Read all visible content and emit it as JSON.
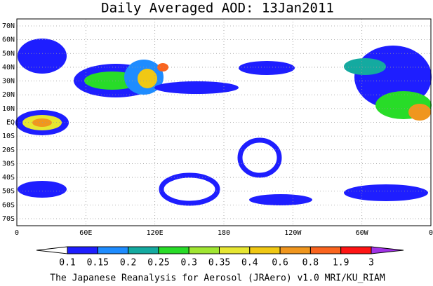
{
  "title": "Daily Averaged AOD: 13Jan2011",
  "lat_labels": [
    "70N",
    "60N",
    "50N",
    "40N",
    "30N",
    "20N",
    "10N",
    "EQ",
    "10S",
    "20S",
    "30S",
    "40S",
    "50S",
    "60S",
    "70S"
  ],
  "lon_labels": [
    "0",
    "60E",
    "120E",
    "180",
    "120W",
    "60W",
    "0"
  ],
  "colorbar": {
    "labels": [
      "0.1",
      "0.15",
      "0.2",
      "0.25",
      "0.3",
      "0.35",
      "0.4",
      "0.6",
      "0.8",
      "1.9",
      "3"
    ],
    "colors": [
      "#ffffff",
      "#1e1eff",
      "#1e8cff",
      "#14aaa0",
      "#28dc28",
      "#a0e632",
      "#e6e632",
      "#f0c814",
      "#f0961e",
      "#fa641e",
      "#ff1414",
      "#a032e6"
    ]
  },
  "footer": "The Japanese Reanalysis for Aerosol (JRAero) v1.0 MRI/KU_RIAM"
}
